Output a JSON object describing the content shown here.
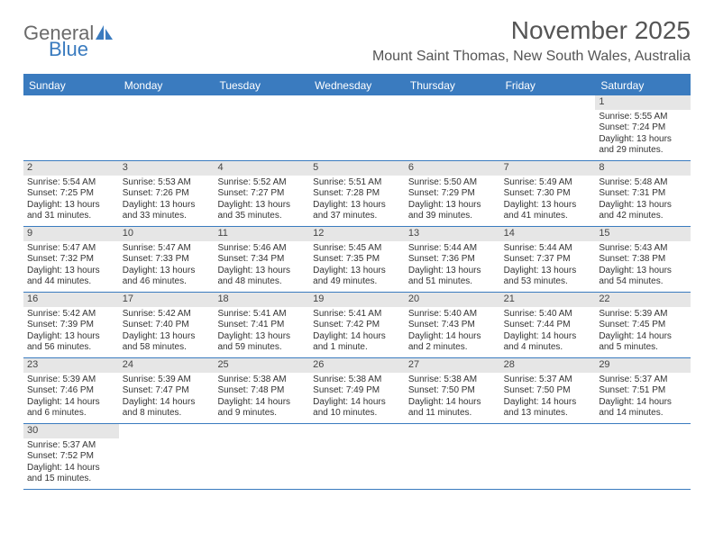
{
  "logo": {
    "general": "General",
    "blue": "Blue"
  },
  "title": "November 2025",
  "location": "Mount Saint Thomas, New South Wales, Australia",
  "colors": {
    "header_bg": "#3a7bbf",
    "header_text": "#ffffff",
    "daynum_bg": "#e6e6e6",
    "body_text": "#333333",
    "title_text": "#555555",
    "logo_gray": "#6a6a6a",
    "logo_blue": "#3a7bbf",
    "border": "#3a7bbf"
  },
  "day_names": [
    "Sunday",
    "Monday",
    "Tuesday",
    "Wednesday",
    "Thursday",
    "Friday",
    "Saturday"
  ],
  "weeks": [
    [
      {
        "empty": true
      },
      {
        "empty": true
      },
      {
        "empty": true
      },
      {
        "empty": true
      },
      {
        "empty": true
      },
      {
        "empty": true
      },
      {
        "day": "1",
        "sunrise": "Sunrise: 5:55 AM",
        "sunset": "Sunset: 7:24 PM",
        "daylight": "Daylight: 13 hours and 29 minutes."
      }
    ],
    [
      {
        "day": "2",
        "sunrise": "Sunrise: 5:54 AM",
        "sunset": "Sunset: 7:25 PM",
        "daylight": "Daylight: 13 hours and 31 minutes."
      },
      {
        "day": "3",
        "sunrise": "Sunrise: 5:53 AM",
        "sunset": "Sunset: 7:26 PM",
        "daylight": "Daylight: 13 hours and 33 minutes."
      },
      {
        "day": "4",
        "sunrise": "Sunrise: 5:52 AM",
        "sunset": "Sunset: 7:27 PM",
        "daylight": "Daylight: 13 hours and 35 minutes."
      },
      {
        "day": "5",
        "sunrise": "Sunrise: 5:51 AM",
        "sunset": "Sunset: 7:28 PM",
        "daylight": "Daylight: 13 hours and 37 minutes."
      },
      {
        "day": "6",
        "sunrise": "Sunrise: 5:50 AM",
        "sunset": "Sunset: 7:29 PM",
        "daylight": "Daylight: 13 hours and 39 minutes."
      },
      {
        "day": "7",
        "sunrise": "Sunrise: 5:49 AM",
        "sunset": "Sunset: 7:30 PM",
        "daylight": "Daylight: 13 hours and 41 minutes."
      },
      {
        "day": "8",
        "sunrise": "Sunrise: 5:48 AM",
        "sunset": "Sunset: 7:31 PM",
        "daylight": "Daylight: 13 hours and 42 minutes."
      }
    ],
    [
      {
        "day": "9",
        "sunrise": "Sunrise: 5:47 AM",
        "sunset": "Sunset: 7:32 PM",
        "daylight": "Daylight: 13 hours and 44 minutes."
      },
      {
        "day": "10",
        "sunrise": "Sunrise: 5:47 AM",
        "sunset": "Sunset: 7:33 PM",
        "daylight": "Daylight: 13 hours and 46 minutes."
      },
      {
        "day": "11",
        "sunrise": "Sunrise: 5:46 AM",
        "sunset": "Sunset: 7:34 PM",
        "daylight": "Daylight: 13 hours and 48 minutes."
      },
      {
        "day": "12",
        "sunrise": "Sunrise: 5:45 AM",
        "sunset": "Sunset: 7:35 PM",
        "daylight": "Daylight: 13 hours and 49 minutes."
      },
      {
        "day": "13",
        "sunrise": "Sunrise: 5:44 AM",
        "sunset": "Sunset: 7:36 PM",
        "daylight": "Daylight: 13 hours and 51 minutes."
      },
      {
        "day": "14",
        "sunrise": "Sunrise: 5:44 AM",
        "sunset": "Sunset: 7:37 PM",
        "daylight": "Daylight: 13 hours and 53 minutes."
      },
      {
        "day": "15",
        "sunrise": "Sunrise: 5:43 AM",
        "sunset": "Sunset: 7:38 PM",
        "daylight": "Daylight: 13 hours and 54 minutes."
      }
    ],
    [
      {
        "day": "16",
        "sunrise": "Sunrise: 5:42 AM",
        "sunset": "Sunset: 7:39 PM",
        "daylight": "Daylight: 13 hours and 56 minutes."
      },
      {
        "day": "17",
        "sunrise": "Sunrise: 5:42 AM",
        "sunset": "Sunset: 7:40 PM",
        "daylight": "Daylight: 13 hours and 58 minutes."
      },
      {
        "day": "18",
        "sunrise": "Sunrise: 5:41 AM",
        "sunset": "Sunset: 7:41 PM",
        "daylight": "Daylight: 13 hours and 59 minutes."
      },
      {
        "day": "19",
        "sunrise": "Sunrise: 5:41 AM",
        "sunset": "Sunset: 7:42 PM",
        "daylight": "Daylight: 14 hours and 1 minute."
      },
      {
        "day": "20",
        "sunrise": "Sunrise: 5:40 AM",
        "sunset": "Sunset: 7:43 PM",
        "daylight": "Daylight: 14 hours and 2 minutes."
      },
      {
        "day": "21",
        "sunrise": "Sunrise: 5:40 AM",
        "sunset": "Sunset: 7:44 PM",
        "daylight": "Daylight: 14 hours and 4 minutes."
      },
      {
        "day": "22",
        "sunrise": "Sunrise: 5:39 AM",
        "sunset": "Sunset: 7:45 PM",
        "daylight": "Daylight: 14 hours and 5 minutes."
      }
    ],
    [
      {
        "day": "23",
        "sunrise": "Sunrise: 5:39 AM",
        "sunset": "Sunset: 7:46 PM",
        "daylight": "Daylight: 14 hours and 6 minutes."
      },
      {
        "day": "24",
        "sunrise": "Sunrise: 5:39 AM",
        "sunset": "Sunset: 7:47 PM",
        "daylight": "Daylight: 14 hours and 8 minutes."
      },
      {
        "day": "25",
        "sunrise": "Sunrise: 5:38 AM",
        "sunset": "Sunset: 7:48 PM",
        "daylight": "Daylight: 14 hours and 9 minutes."
      },
      {
        "day": "26",
        "sunrise": "Sunrise: 5:38 AM",
        "sunset": "Sunset: 7:49 PM",
        "daylight": "Daylight: 14 hours and 10 minutes."
      },
      {
        "day": "27",
        "sunrise": "Sunrise: 5:38 AM",
        "sunset": "Sunset: 7:50 PM",
        "daylight": "Daylight: 14 hours and 11 minutes."
      },
      {
        "day": "28",
        "sunrise": "Sunrise: 5:37 AM",
        "sunset": "Sunset: 7:50 PM",
        "daylight": "Daylight: 14 hours and 13 minutes."
      },
      {
        "day": "29",
        "sunrise": "Sunrise: 5:37 AM",
        "sunset": "Sunset: 7:51 PM",
        "daylight": "Daylight: 14 hours and 14 minutes."
      }
    ],
    [
      {
        "day": "30",
        "sunrise": "Sunrise: 5:37 AM",
        "sunset": "Sunset: 7:52 PM",
        "daylight": "Daylight: 14 hours and 15 minutes."
      },
      {
        "empty": true
      },
      {
        "empty": true
      },
      {
        "empty": true
      },
      {
        "empty": true
      },
      {
        "empty": true
      },
      {
        "empty": true
      }
    ]
  ]
}
